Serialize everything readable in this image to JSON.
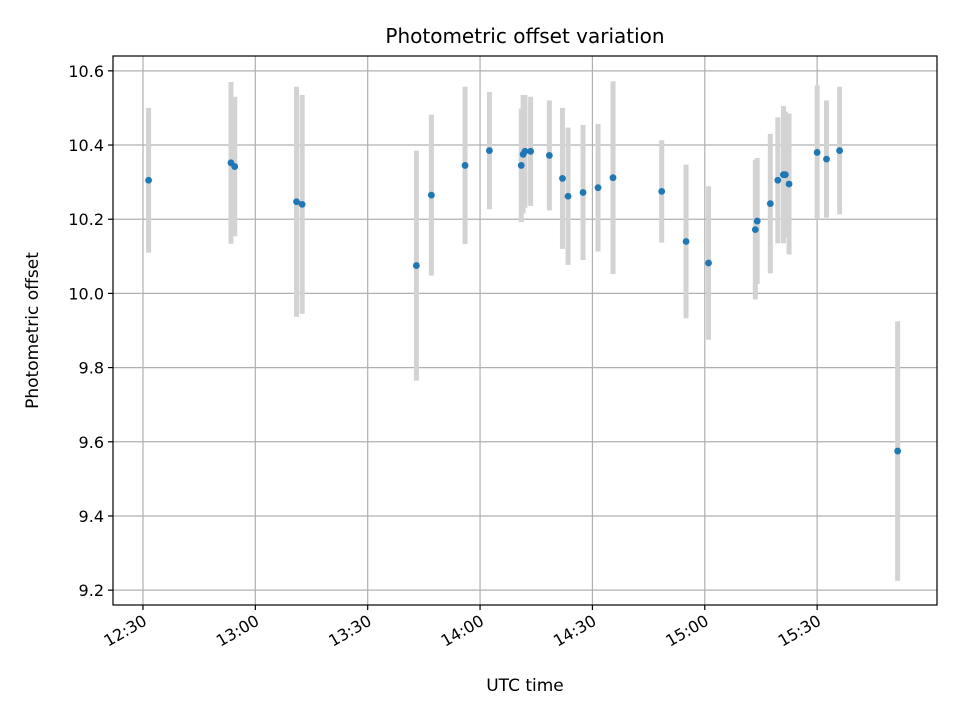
{
  "chart_data": {
    "type": "scatter",
    "title": "Photometric offset variation",
    "xlabel": "UTC time",
    "ylabel": "Photometric offset",
    "x_unit": "minutes since 12:00 UTC",
    "xlim": [
      22,
      242
    ],
    "ylim": [
      9.16,
      10.64
    ],
    "x_ticks": [
      {
        "value": 30,
        "label": "12:30"
      },
      {
        "value": 60,
        "label": "13:00"
      },
      {
        "value": 90,
        "label": "13:30"
      },
      {
        "value": 120,
        "label": "14:00"
      },
      {
        "value": 150,
        "label": "14:30"
      },
      {
        "value": 180,
        "label": "15:00"
      },
      {
        "value": 210,
        "label": "15:30"
      }
    ],
    "y_ticks": [
      9.2,
      9.4,
      9.6,
      9.8,
      10.0,
      10.2,
      10.4,
      10.6
    ],
    "y_tick_labels": [
      "9.2",
      "9.4",
      "9.6",
      "9.8",
      "10.0",
      "10.2",
      "10.4",
      "10.6"
    ],
    "grid": true,
    "point_color": "#1f77b4",
    "errorbar_color": "#d3d3d3",
    "points": [
      {
        "x": 31.5,
        "y": 10.305,
        "err": 0.195
      },
      {
        "x": 53.5,
        "y": 10.352,
        "err": 0.218
      },
      {
        "x": 54.5,
        "y": 10.342,
        "err": 0.188
      },
      {
        "x": 71.0,
        "y": 10.247,
        "err": 0.31
      },
      {
        "x": 72.5,
        "y": 10.24,
        "err": 0.295
      },
      {
        "x": 103.0,
        "y": 10.075,
        "err": 0.31
      },
      {
        "x": 107.0,
        "y": 10.265,
        "err": 0.217
      },
      {
        "x": 116.0,
        "y": 10.345,
        "err": 0.212
      },
      {
        "x": 122.5,
        "y": 10.385,
        "err": 0.158
      },
      {
        "x": 131.0,
        "y": 10.345,
        "err": 0.153
      },
      {
        "x": 131.5,
        "y": 10.375,
        "err": 0.16
      },
      {
        "x": 132.0,
        "y": 10.383,
        "err": 0.152
      },
      {
        "x": 133.5,
        "y": 10.383,
        "err": 0.147
      },
      {
        "x": 138.5,
        "y": 10.372,
        "err": 0.148
      },
      {
        "x": 142.0,
        "y": 10.31,
        "err": 0.19
      },
      {
        "x": 143.5,
        "y": 10.262,
        "err": 0.185
      },
      {
        "x": 147.5,
        "y": 10.272,
        "err": 0.182
      },
      {
        "x": 151.5,
        "y": 10.285,
        "err": 0.172
      },
      {
        "x": 155.5,
        "y": 10.312,
        "err": 0.26
      },
      {
        "x": 168.5,
        "y": 10.275,
        "err": 0.138
      },
      {
        "x": 175.0,
        "y": 10.14,
        "err": 0.207
      },
      {
        "x": 181.0,
        "y": 10.082,
        "err": 0.207
      },
      {
        "x": 193.5,
        "y": 10.172,
        "err": 0.188
      },
      {
        "x": 194.0,
        "y": 10.195,
        "err": 0.17
      },
      {
        "x": 197.5,
        "y": 10.242,
        "err": 0.188
      },
      {
        "x": 199.5,
        "y": 10.305,
        "err": 0.17
      },
      {
        "x": 201.0,
        "y": 10.32,
        "err": 0.185
      },
      {
        "x": 201.5,
        "y": 10.32,
        "err": 0.17
      },
      {
        "x": 202.5,
        "y": 10.295,
        "err": 0.19
      },
      {
        "x": 210.0,
        "y": 10.38,
        "err": 0.18
      },
      {
        "x": 212.5,
        "y": 10.362,
        "err": 0.158
      },
      {
        "x": 216.0,
        "y": 10.385,
        "err": 0.172
      },
      {
        "x": 231.5,
        "y": 9.575,
        "err": 0.35
      }
    ]
  }
}
